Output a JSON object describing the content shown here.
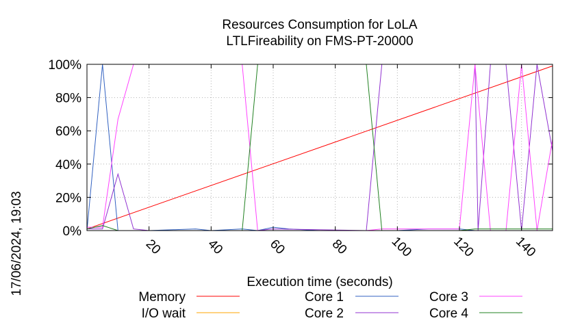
{
  "chart_data": {
    "type": "line",
    "title": "Resources Consumption for LoLA",
    "subtitle": "LTLFireability on FMS-PT-20000",
    "xlabel": "Execution time (seconds)",
    "side_label": "17/06/2024, 19:03",
    "xlim": [
      0,
      150
    ],
    "ylim": [
      0,
      100
    ],
    "x_ticks": [
      20,
      40,
      60,
      80,
      100,
      120,
      140
    ],
    "x_tick_labels": [
      "20",
      "40",
      "60",
      "80",
      "100",
      "120",
      "140"
    ],
    "y_ticks": [
      0,
      20,
      40,
      60,
      80,
      100
    ],
    "y_tick_labels": [
      "0%",
      "20%",
      "40%",
      "60%",
      "80%",
      "100%"
    ],
    "grid": true,
    "legend_placement": "bottom",
    "series": [
      {
        "name": "Memory",
        "color": "#ff0000",
        "points": [
          [
            0,
            1
          ],
          [
            150,
            99
          ]
        ]
      },
      {
        "name": "I/O wait",
        "color": "#ffa500",
        "points": [
          [
            0,
            0
          ],
          [
            150,
            0
          ]
        ]
      },
      {
        "name": "Core 1",
        "color": "#3060c0",
        "points": [
          [
            0,
            0
          ],
          [
            5,
            100
          ],
          [
            10,
            0
          ],
          [
            20,
            0
          ],
          [
            35,
            1
          ],
          [
            40,
            0
          ],
          [
            50,
            1
          ],
          [
            55,
            0
          ],
          [
            60,
            2
          ],
          [
            65,
            1
          ],
          [
            75,
            0
          ],
          [
            90,
            0
          ],
          [
            95,
            0
          ],
          [
            100,
            0
          ],
          [
            110,
            1
          ],
          [
            120,
            1
          ],
          [
            125,
            0
          ],
          [
            140,
            0
          ],
          [
            150,
            0
          ]
        ]
      },
      {
        "name": "Core 2",
        "color": "#9030d0",
        "points": [
          [
            0,
            1
          ],
          [
            5,
            1
          ],
          [
            10,
            34
          ],
          [
            15,
            1
          ],
          [
            20,
            0
          ],
          [
            50,
            0
          ],
          [
            55,
            0
          ],
          [
            60,
            1
          ],
          [
            90,
            0
          ],
          [
            95,
            100
          ],
          [
            125,
            100
          ],
          [
            126,
            0
          ],
          [
            130,
            100
          ],
          [
            135,
            100
          ],
          [
            140,
            0
          ],
          [
            145,
            100
          ],
          [
            150,
            48
          ]
        ]
      },
      {
        "name": "Core 3",
        "color": "#ff40ff",
        "points": [
          [
            0,
            2
          ],
          [
            5,
            2
          ],
          [
            10,
            67
          ],
          [
            15,
            100
          ],
          [
            20,
            100
          ],
          [
            50,
            100
          ],
          [
            55,
            0
          ],
          [
            90,
            0
          ],
          [
            95,
            1
          ],
          [
            120,
            1
          ],
          [
            125,
            100
          ],
          [
            130,
            0
          ],
          [
            135,
            0
          ],
          [
            140,
            100
          ],
          [
            145,
            0
          ],
          [
            150,
            55
          ]
        ]
      },
      {
        "name": "Core 4",
        "color": "#208020",
        "points": [
          [
            0,
            1
          ],
          [
            5,
            3
          ],
          [
            10,
            0
          ],
          [
            50,
            0
          ],
          [
            55,
            100
          ],
          [
            90,
            100
          ],
          [
            95,
            0
          ],
          [
            120,
            0
          ],
          [
            125,
            1
          ],
          [
            150,
            1
          ]
        ]
      }
    ]
  }
}
